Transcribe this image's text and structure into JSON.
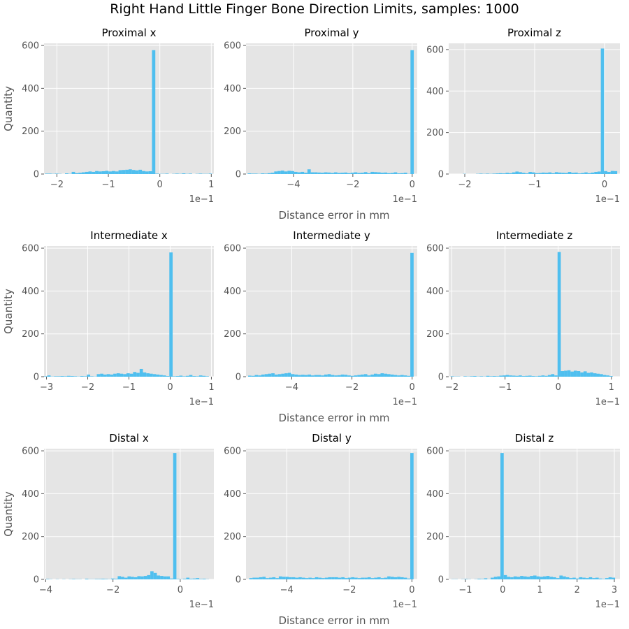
{
  "figure": {
    "title": "Right Hand Little Finger Bone Direction Limits, samples: 1000",
    "row_xlabel": "Distance error in mm",
    "row_ylabel": "Quantity",
    "bar_color": "#4FBFEF",
    "panel_bg": "#E5E5E5",
    "grid_color": "#FFFFFF"
  },
  "chart_data": [
    {
      "type": "bar",
      "title": "Proximal x",
      "xlim": [
        -0.225,
        0.105
      ],
      "ylim": [
        0,
        610
      ],
      "xticks": [
        -0.2,
        -0.1,
        0,
        0.1
      ],
      "xtick_labels": [
        "−2",
        "−1",
        "0",
        "1"
      ],
      "yticks": [
        0,
        200,
        400,
        600
      ],
      "ytick_labels": [
        "0",
        "200",
        "400",
        "600"
      ],
      "offset_text": "1e−1",
      "bin_width": 0.0065,
      "x": [
        -0.22,
        -0.2135,
        -0.207,
        -0.2005,
        -0.194,
        -0.1875,
        -0.181,
        -0.1745,
        -0.168,
        -0.1615,
        -0.155,
        -0.1485,
        -0.142,
        -0.1355,
        -0.129,
        -0.1225,
        -0.116,
        -0.1095,
        -0.103,
        -0.0965,
        -0.09,
        -0.0835,
        -0.077,
        -0.0705,
        -0.064,
        -0.0575,
        -0.051,
        -0.0445,
        -0.038,
        -0.0315,
        -0.025,
        -0.0185,
        -0.012,
        -0.0055,
        0.001,
        0.0075,
        0.014,
        0.0205,
        0.027,
        0.0335,
        0.04,
        0.0465,
        0.053,
        0.0595,
        0.066,
        0.0725,
        0.079,
        0.0855,
        0.092,
        0.0985
      ],
      "values": [
        2,
        2,
        1,
        2,
        1,
        0,
        3,
        1,
        10,
        4,
        6,
        8,
        10,
        12,
        10,
        14,
        12,
        13,
        15,
        12,
        14,
        12,
        18,
        19,
        20,
        22,
        19,
        17,
        20,
        14,
        12,
        13,
        578,
        2,
        1,
        1,
        2,
        0,
        1,
        2,
        1,
        3,
        1,
        2,
        0,
        1,
        2,
        1,
        1,
        2
      ]
    },
    {
      "type": "bar",
      "title": "Proximal y",
      "xlim": [
        -0.56,
        0.017
      ],
      "ylim": [
        0,
        610
      ],
      "xticks": [
        -0.4,
        -0.2,
        0
      ],
      "xtick_labels": [
        "−4",
        "−2",
        "0"
      ],
      "yticks": [
        0,
        200,
        400,
        600
      ],
      "ytick_labels": [
        "0",
        "200",
        "400",
        "600"
      ],
      "offset_text": "1e−1",
      "bin_width": 0.0112,
      "x": [
        -0.549,
        -0.5378,
        -0.5266,
        -0.5154,
        -0.5042,
        -0.493,
        -0.4818,
        -0.4706,
        -0.4594,
        -0.4482,
        -0.437,
        -0.4258,
        -0.4146,
        -0.4034,
        -0.3922,
        -0.381,
        -0.3698,
        -0.3586,
        -0.3474,
        -0.3362,
        -0.325,
        -0.3138,
        -0.3026,
        -0.2914,
        -0.2802,
        -0.269,
        -0.2578,
        -0.2466,
        -0.2354,
        -0.2242,
        -0.213,
        -0.2018,
        -0.1906,
        -0.1794,
        -0.1682,
        -0.157,
        -0.1458,
        -0.1346,
        -0.1234,
        -0.1122,
        -0.101,
        -0.0898,
        -0.0786,
        -0.0674,
        -0.0562,
        -0.045,
        -0.0338,
        -0.0226,
        -0.0114,
        -0.0002
      ],
      "values": [
        3,
        2,
        2,
        1,
        3,
        2,
        4,
        6,
        12,
        14,
        16,
        12,
        15,
        14,
        10,
        8,
        10,
        6,
        22,
        8,
        8,
        7,
        6,
        8,
        7,
        5,
        8,
        5,
        6,
        7,
        4,
        6,
        8,
        5,
        6,
        9,
        4,
        10,
        9,
        8,
        6,
        7,
        4,
        5,
        8,
        3,
        4,
        6,
        1,
        578
      ]
    },
    {
      "type": "bar",
      "title": "Proximal z",
      "xlim": [
        -0.223,
        0.022
      ],
      "ylim": [
        0,
        630
      ],
      "xticks": [
        -0.2,
        -0.1,
        0
      ],
      "xtick_labels": [
        "−2",
        "−1",
        "0"
      ],
      "yticks": [
        0,
        200,
        400,
        600
      ],
      "ytick_labels": [
        "0",
        "200",
        "400",
        "600"
      ],
      "offset_text": "1e−1",
      "bin_width": 0.0047,
      "x": [
        -0.2145,
        -0.2098,
        -0.2051,
        -0.2004,
        -0.1957,
        -0.191,
        -0.1863,
        -0.1816,
        -0.1769,
        -0.1722,
        -0.1675,
        -0.1628,
        -0.1581,
        -0.1534,
        -0.1487,
        -0.144,
        -0.1393,
        -0.1346,
        -0.1299,
        -0.1252,
        -0.1205,
        -0.1158,
        -0.1111,
        -0.1064,
        -0.1017,
        -0.097,
        -0.0923,
        -0.0876,
        -0.0829,
        -0.0782,
        -0.0735,
        -0.0688,
        -0.0641,
        -0.0594,
        -0.0547,
        -0.05,
        -0.0453,
        -0.0406,
        -0.0359,
        -0.0312,
        -0.0265,
        -0.0218,
        -0.0171,
        -0.0124,
        -0.0077,
        -0.003,
        0.0017,
        0.0064,
        0.0111,
        0.0158
      ],
      "values": [
        0,
        0,
        0,
        1,
        0,
        0,
        0,
        1,
        2,
        1,
        2,
        1,
        2,
        3,
        4,
        3,
        6,
        4,
        8,
        12,
        9,
        6,
        3,
        10,
        8,
        4,
        5,
        7,
        6,
        8,
        4,
        9,
        7,
        6,
        5,
        10,
        6,
        7,
        3,
        5,
        8,
        4,
        7,
        10,
        12,
        605,
        14,
        10,
        15,
        14
      ]
    },
    {
      "type": "bar",
      "title": "Intermediate x",
      "xlim": [
        -0.306,
        0.106
      ],
      "ylim": [
        0,
        610
      ],
      "xticks": [
        -0.3,
        -0.2,
        -0.1,
        0,
        0.1
      ],
      "xtick_labels": [
        "−3",
        "−2",
        "−1",
        "0",
        "1"
      ],
      "yticks": [
        0,
        200,
        400,
        600
      ],
      "ytick_labels": [
        "0",
        "200",
        "400",
        "600"
      ],
      "offset_text": "1e−1",
      "bin_width": 0.008,
      "x": [
        -0.302,
        -0.294,
        -0.286,
        -0.278,
        -0.27,
        -0.262,
        -0.254,
        -0.246,
        -0.238,
        -0.23,
        -0.222,
        -0.214,
        -0.206,
        -0.198,
        -0.19,
        -0.182,
        -0.174,
        -0.166,
        -0.158,
        -0.15,
        -0.142,
        -0.134,
        -0.126,
        -0.118,
        -0.11,
        -0.102,
        -0.094,
        -0.086,
        -0.078,
        -0.07,
        -0.062,
        -0.054,
        -0.046,
        -0.038,
        -0.03,
        -0.022,
        -0.014,
        -0.006,
        0.002,
        0.01,
        0.018,
        0.026,
        0.034,
        0.042,
        0.05,
        0.058,
        0.066,
        0.074,
        0.082,
        0.09
      ],
      "values": [
        2,
        6,
        1,
        2,
        2,
        3,
        2,
        4,
        3,
        2,
        1,
        3,
        2,
        10,
        2,
        1,
        12,
        14,
        10,
        12,
        10,
        14,
        16,
        14,
        12,
        16,
        14,
        22,
        18,
        36,
        20,
        16,
        14,
        12,
        10,
        8,
        6,
        3,
        580,
        2,
        3,
        5,
        2,
        4,
        8,
        3,
        2,
        6,
        4,
        2
      ]
    },
    {
      "type": "bar",
      "title": "Intermediate y",
      "xlim": [
        -0.552,
        0.017
      ],
      "ylim": [
        0,
        610
      ],
      "xticks": [
        -0.4,
        -0.2,
        0
      ],
      "xtick_labels": [
        "−4",
        "−2",
        "0"
      ],
      "yticks": [
        0,
        200,
        400,
        600
      ],
      "ytick_labels": [
        "0",
        "200",
        "400",
        "600"
      ],
      "offset_text": "1e−1",
      "bin_width": 0.011,
      "x": [
        -0.5395,
        -0.5285,
        -0.5175,
        -0.5065,
        -0.4955,
        -0.4845,
        -0.4735,
        -0.4625,
        -0.4515,
        -0.4405,
        -0.4295,
        -0.4185,
        -0.4075,
        -0.3965,
        -0.3855,
        -0.3745,
        -0.3635,
        -0.3525,
        -0.3415,
        -0.3305,
        -0.3195,
        -0.3085,
        -0.2975,
        -0.2865,
        -0.2755,
        -0.2645,
        -0.2535,
        -0.2425,
        -0.2315,
        -0.2205,
        -0.2095,
        -0.1985,
        -0.1875,
        -0.1765,
        -0.1655,
        -0.1545,
        -0.1435,
        -0.1325,
        -0.1215,
        -0.1105,
        -0.0995,
        -0.0885,
        -0.0775,
        -0.0665,
        -0.0555,
        -0.0445,
        -0.0335,
        -0.0225,
        -0.0115,
        -0.0005
      ],
      "values": [
        5,
        4,
        8,
        6,
        10,
        12,
        14,
        16,
        10,
        12,
        14,
        16,
        18,
        12,
        10,
        8,
        9,
        8,
        10,
        6,
        8,
        8,
        6,
        10,
        12,
        8,
        6,
        7,
        10,
        9,
        6,
        4,
        6,
        8,
        10,
        12,
        6,
        10,
        14,
        12,
        16,
        14,
        12,
        10,
        8,
        6,
        8,
        6,
        4,
        578
      ]
    },
    {
      "type": "bar",
      "title": "Intermediate z",
      "xlim": [
        -0.206,
        0.116
      ],
      "ylim": [
        0,
        610
      ],
      "xticks": [
        -0.2,
        -0.1,
        0,
        0.1
      ],
      "xtick_labels": [
        "−2",
        "−1",
        "0",
        "1"
      ],
      "yticks": [
        0,
        200,
        400,
        600
      ],
      "ytick_labels": [
        "0",
        "200",
        "400",
        "600"
      ],
      "offset_text": "1e−1",
      "bin_width": 0.0061,
      "x": [
        -0.1995,
        -0.1934,
        -0.1873,
        -0.1812,
        -0.1751,
        -0.169,
        -0.1629,
        -0.1568,
        -0.1507,
        -0.1446,
        -0.1385,
        -0.1324,
        -0.1263,
        -0.1202,
        -0.1141,
        -0.108,
        -0.1019,
        -0.0958,
        -0.0897,
        -0.0836,
        -0.0775,
        -0.0714,
        -0.0653,
        -0.0592,
        -0.0531,
        -0.047,
        -0.0409,
        -0.0348,
        -0.0287,
        -0.0226,
        -0.0165,
        -0.0104,
        -0.0043,
        0.0018,
        0.0079,
        0.014,
        0.0201,
        0.0262,
        0.0323,
        0.0384,
        0.0445,
        0.0506,
        0.0567,
        0.0628,
        0.0689,
        0.075,
        0.0811,
        0.0872,
        0.0933,
        0.0994
      ],
      "values": [
        2,
        1,
        1,
        0,
        2,
        1,
        2,
        3,
        1,
        2,
        1,
        4,
        2,
        3,
        2,
        5,
        6,
        8,
        6,
        5,
        4,
        6,
        3,
        4,
        5,
        3,
        2,
        4,
        6,
        4,
        8,
        12,
        6,
        582,
        26,
        28,
        30,
        24,
        28,
        26,
        20,
        25,
        18,
        20,
        16,
        14,
        12,
        8,
        6,
        3
      ]
    },
    {
      "type": "bar",
      "title": "Distal x",
      "xlim": [
        -0.405,
        0.1
      ],
      "ylim": [
        0,
        610
      ],
      "xticks": [
        -0.4,
        -0.2,
        0
      ],
      "xtick_labels": [
        "−4",
        "−2",
        "0"
      ],
      "yticks": [
        0,
        200,
        400,
        600
      ],
      "ytick_labels": [
        "0",
        "200",
        "400",
        "600"
      ],
      "offset_text": "1e−1",
      "bin_width": 0.0097,
      "x": [
        -0.3945,
        -0.3848,
        -0.3751,
        -0.3654,
        -0.3557,
        -0.346,
        -0.3363,
        -0.3266,
        -0.3169,
        -0.3072,
        -0.2975,
        -0.2878,
        -0.2781,
        -0.2684,
        -0.2587,
        -0.249,
        -0.2393,
        -0.2296,
        -0.2199,
        -0.2102,
        -0.2005,
        -0.1908,
        -0.1811,
        -0.1714,
        -0.1617,
        -0.152,
        -0.1423,
        -0.1326,
        -0.1229,
        -0.1132,
        -0.1035,
        -0.0938,
        -0.0841,
        -0.0744,
        -0.0647,
        -0.055,
        -0.0453,
        -0.0356,
        -0.0259,
        -0.0162,
        -0.0065,
        0.0032,
        0.0129,
        0.0226,
        0.0323,
        0.042,
        0.0517,
        0.0614,
        0.0711,
        0.0808
      ],
      "values": [
        2,
        1,
        0,
        1,
        0,
        1,
        0,
        1,
        2,
        1,
        1,
        0,
        3,
        1,
        1,
        2,
        2,
        3,
        2,
        1,
        4,
        3,
        15,
        12,
        8,
        14,
        12,
        10,
        15,
        14,
        16,
        20,
        38,
        30,
        18,
        16,
        14,
        14,
        4,
        590,
        2,
        1,
        3,
        8,
        3,
        4,
        6,
        2,
        3,
        1
      ]
    },
    {
      "type": "bar",
      "title": "Distal y",
      "xlim": [
        -0.53,
        0.017
      ],
      "ylim": [
        0,
        610
      ],
      "xticks": [
        -0.4,
        -0.2,
        0
      ],
      "xtick_labels": [
        "−4",
        "−2",
        "0"
      ],
      "yticks": [
        0,
        200,
        400,
        600
      ],
      "ytick_labels": [
        "0",
        "200",
        "400",
        "600"
      ],
      "offset_text": "1e−1",
      "bin_width": 0.0105,
      "x": [
        -0.5145,
        -0.504,
        -0.4935,
        -0.483,
        -0.4725,
        -0.462,
        -0.4515,
        -0.441,
        -0.4305,
        -0.42,
        -0.4095,
        -0.399,
        -0.3885,
        -0.378,
        -0.3675,
        -0.357,
        -0.3465,
        -0.336,
        -0.3255,
        -0.315,
        -0.3045,
        -0.294,
        -0.2835,
        -0.273,
        -0.2625,
        -0.252,
        -0.2415,
        -0.231,
        -0.2205,
        -0.21,
        -0.1995,
        -0.189,
        -0.1785,
        -0.168,
        -0.1575,
        -0.147,
        -0.1365,
        -0.126,
        -0.1155,
        -0.105,
        -0.0945,
        -0.084,
        -0.0735,
        -0.063,
        -0.0525,
        -0.042,
        -0.0315,
        -0.021,
        -0.0105,
        0.0
      ],
      "values": [
        6,
        8,
        8,
        10,
        12,
        6,
        8,
        10,
        6,
        14,
        12,
        12,
        10,
        10,
        8,
        10,
        8,
        6,
        8,
        6,
        10,
        8,
        6,
        8,
        10,
        10,
        10,
        8,
        10,
        6,
        8,
        10,
        8,
        6,
        8,
        8,
        10,
        6,
        8,
        10,
        6,
        8,
        14,
        12,
        10,
        12,
        10,
        8,
        4,
        590
      ]
    },
    {
      "type": "bar",
      "title": "Distal z",
      "xlim": [
        -0.145,
        0.315
      ],
      "ylim": [
        0,
        610
      ],
      "xticks": [
        -0.1,
        0,
        0.1,
        0.2,
        0.3
      ],
      "xtick_labels": [
        "−1",
        "0",
        "1",
        "2",
        "3"
      ],
      "yticks": [
        0,
        200,
        400,
        600
      ],
      "ytick_labels": [
        "0",
        "200",
        "400",
        "600"
      ],
      "offset_text": "1e−1",
      "bin_width": 0.0088,
      "x": [
        -0.1336,
        -0.1248,
        -0.116,
        -0.1072,
        -0.0984,
        -0.0896,
        -0.0808,
        -0.072,
        -0.0632,
        -0.0544,
        -0.0456,
        -0.0368,
        -0.028,
        -0.0192,
        -0.0104,
        -0.0016,
        0.0072,
        0.016,
        0.0248,
        0.0336,
        0.0424,
        0.0512,
        0.06,
        0.0688,
        0.0776,
        0.0864,
        0.0952,
        0.104,
        0.1128,
        0.1216,
        0.1304,
        0.1392,
        0.148,
        0.1568,
        0.1656,
        0.1744,
        0.1832,
        0.192,
        0.2008,
        0.2096,
        0.2184,
        0.2272,
        0.236,
        0.2448,
        0.2536,
        0.2624,
        0.2712,
        0.28,
        0.2888,
        0.2976
      ],
      "values": [
        1,
        1,
        0,
        1,
        2,
        1,
        0,
        1,
        3,
        2,
        5,
        1,
        8,
        12,
        14,
        590,
        20,
        12,
        10,
        14,
        12,
        16,
        14,
        12,
        16,
        18,
        14,
        12,
        14,
        16,
        12,
        10,
        6,
        18,
        14,
        10,
        6,
        8,
        4,
        10,
        8,
        6,
        10,
        6,
        8,
        4,
        2,
        6,
        10,
        8
      ]
    }
  ]
}
